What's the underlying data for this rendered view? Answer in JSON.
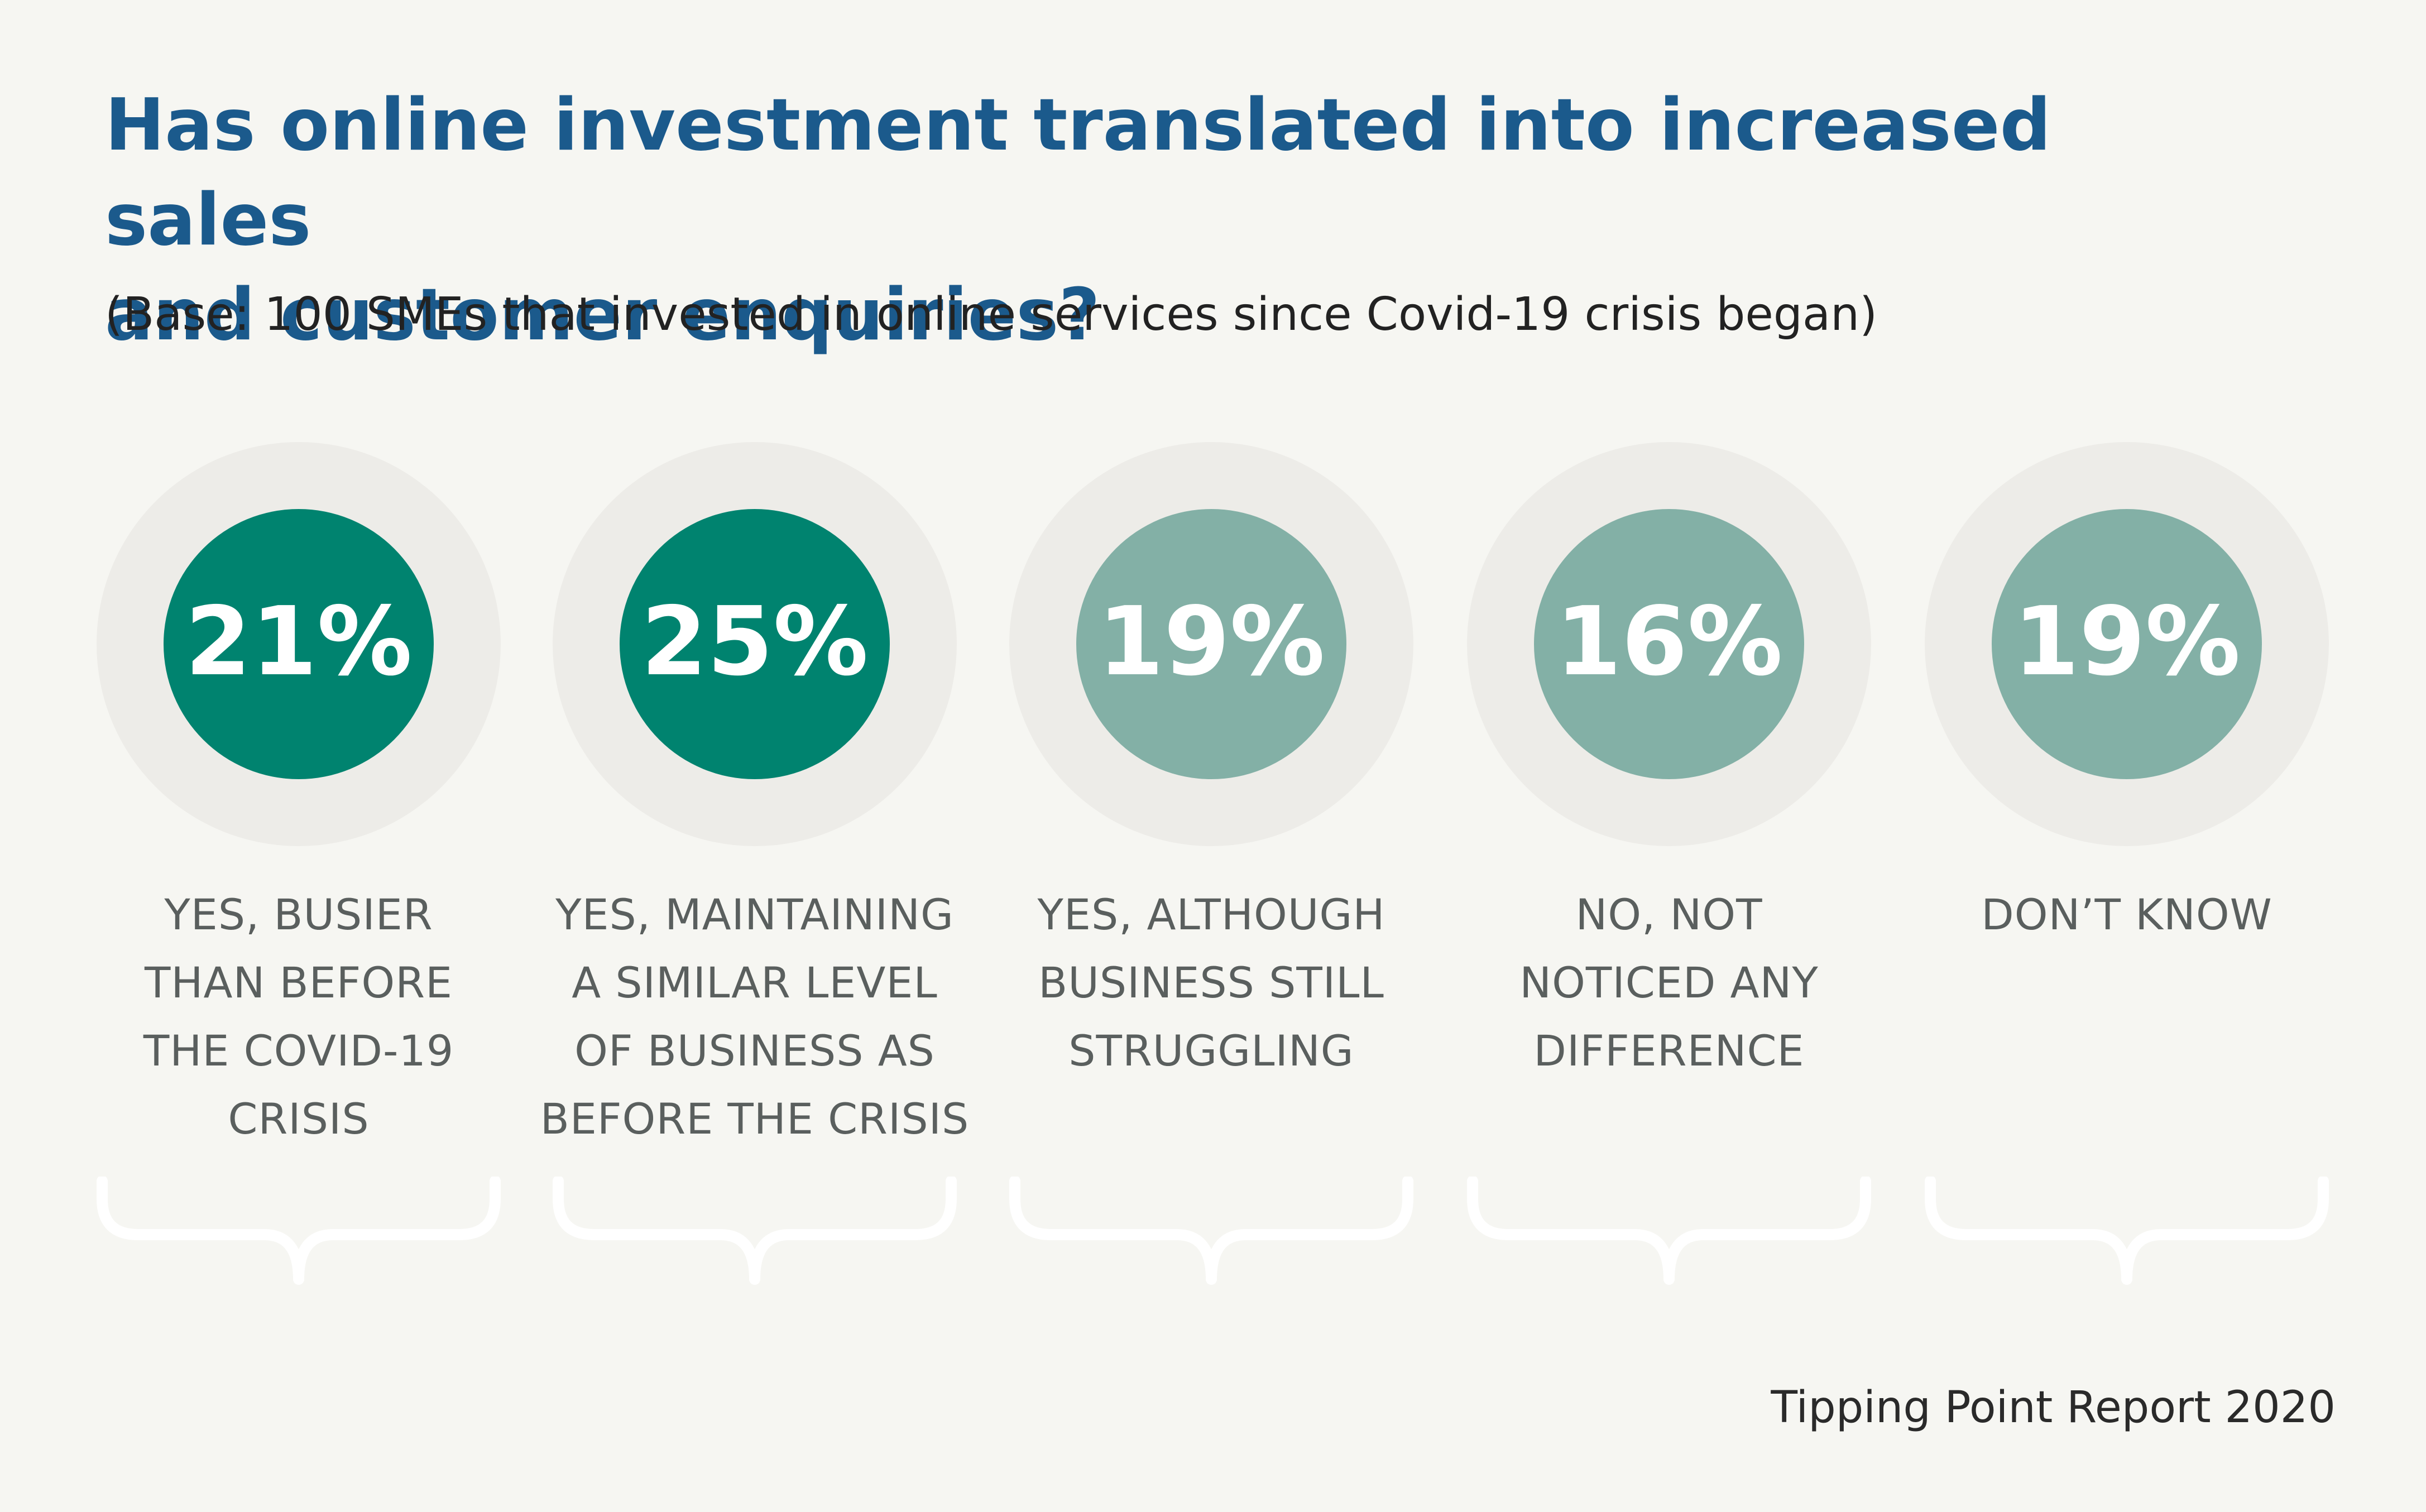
{
  "title_lines": [
    "Has online investment translated into increased sales",
    "and customer enquiries?"
  ],
  "subtitle": "(Base: 100 SMEs that invested in online services since Covid-19 crisis began)",
  "source": "Tipping Point Report 2020",
  "colors": {
    "background": "#f6f6f2",
    "title": "#1b5a8c",
    "ring": "#edece8",
    "yes_strong": "#00836f",
    "other": "#83b0a6",
    "label": "#5a5f5e",
    "brace": "#ffffff"
  },
  "chart_data": {
    "type": "bar",
    "title": "Has online investment translated into increased sales and customer enquiries?",
    "subtitle": "(Base: 100 SMEs that invested in online services since Covid-19 crisis began)",
    "unit": "%",
    "categories": [
      "YES, BUSIER THAN BEFORE THE COVID-19 CRISIS",
      "YES, MAINTAINING A SIMILAR LEVEL OF BUSINESS AS BEFORE THE CRISIS",
      "YES, ALTHOUGH BUSINESS STILL STRUGGLING",
      "NO, NOT NOTICED ANY DIFFERENCE",
      "DON’T KNOW"
    ],
    "values": [
      21,
      25,
      19,
      16,
      19
    ],
    "value_labels": [
      "21%",
      "25%",
      "19%",
      "16%",
      "19%"
    ],
    "label_lines": [
      [
        "YES, BUSIER",
        "THAN BEFORE",
        "THE COVID-19",
        "CRISIS"
      ],
      [
        "YES, MAINTAINING",
        "A SIMILAR LEVEL",
        "OF BUSINESS AS",
        "BEFORE THE CRISIS"
      ],
      [
        "YES, ALTHOUGH",
        "BUSINESS STILL",
        "STRUGGLING"
      ],
      [
        "NO, NOT",
        "NOTICED ANY",
        "DIFFERENCE"
      ],
      [
        "DON’T KNOW"
      ]
    ],
    "fill_colors": [
      "#00836f",
      "#00836f",
      "#83b0a6",
      "#83b0a6",
      "#83b0a6"
    ]
  }
}
